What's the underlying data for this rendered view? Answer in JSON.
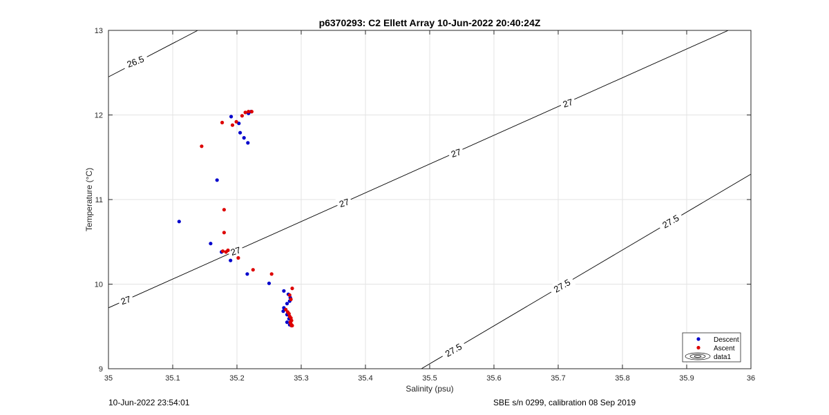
{
  "chart_data": {
    "type": "scatter",
    "title": "p6370293: C2 Ellett Array 10-Jun-2022 20:40:24Z",
    "xlabel": "Salinity (psu)",
    "ylabel": "Temperature (°C)",
    "xlim": [
      35,
      36
    ],
    "ylim": [
      9,
      13
    ],
    "xticks": [
      "35",
      "35.1",
      "35.2",
      "35.3",
      "35.4",
      "35.5",
      "35.6",
      "35.7",
      "35.8",
      "35.9",
      "36"
    ],
    "yticks": [
      "9",
      "10",
      "11",
      "12",
      "13"
    ],
    "grid": true,
    "legend_position": "bottom-right",
    "series": [
      {
        "name": "Descent",
        "color": "#0000cc",
        "points": [
          [
            35.191,
            11.98
          ],
          [
            35.203,
            11.9
          ],
          [
            35.205,
            11.79
          ],
          [
            35.211,
            11.73
          ],
          [
            35.217,
            11.67
          ],
          [
            35.218,
            12.02
          ],
          [
            35.222,
            12.04
          ],
          [
            35.169,
            11.23
          ],
          [
            35.11,
            10.74
          ],
          [
            35.159,
            10.48
          ],
          [
            35.176,
            10.38
          ],
          [
            35.19,
            10.28
          ],
          [
            35.216,
            10.12
          ],
          [
            35.25,
            10.01
          ],
          [
            35.273,
            9.92
          ],
          [
            35.28,
            9.88
          ],
          [
            35.283,
            9.84
          ],
          [
            35.282,
            9.8
          ],
          [
            35.278,
            9.77
          ],
          [
            35.273,
            9.72
          ],
          [
            35.272,
            9.68
          ],
          [
            35.278,
            9.64
          ],
          [
            35.281,
            9.59
          ],
          [
            35.278,
            9.55
          ],
          [
            35.282,
            9.52
          ],
          [
            35.285,
            9.51
          ]
        ]
      },
      {
        "name": "Ascent",
        "color": "#dd0000",
        "points": [
          [
            35.145,
            11.63
          ],
          [
            35.177,
            11.91
          ],
          [
            35.193,
            11.88
          ],
          [
            35.199,
            11.92
          ],
          [
            35.208,
            11.99
          ],
          [
            35.213,
            12.03
          ],
          [
            35.218,
            12.04
          ],
          [
            35.223,
            12.04
          ],
          [
            35.18,
            10.88
          ],
          [
            35.18,
            10.61
          ],
          [
            35.183,
            10.38
          ],
          [
            35.186,
            10.4
          ],
          [
            35.178,
            10.39
          ],
          [
            35.202,
            10.31
          ],
          [
            35.225,
            10.17
          ],
          [
            35.254,
            10.12
          ],
          [
            35.286,
            9.95
          ],
          [
            35.282,
            9.87
          ],
          [
            35.284,
            9.82
          ],
          [
            35.276,
            9.7
          ],
          [
            35.279,
            9.67
          ],
          [
            35.281,
            9.65
          ],
          [
            35.282,
            9.62
          ],
          [
            35.284,
            9.6
          ],
          [
            35.285,
            9.57
          ],
          [
            35.283,
            9.55
          ],
          [
            35.284,
            9.53
          ],
          [
            35.285,
            9.51
          ],
          [
            35.286,
            9.51
          ]
        ]
      }
    ],
    "density_contours": [
      {
        "label": "26.5",
        "points": [
          [
            35.0,
            12.45
          ],
          [
            35.139,
            13.0
          ]
        ]
      },
      {
        "label": "27",
        "points": [
          [
            35.0,
            9.72
          ],
          [
            36.0,
            13.12
          ]
        ]
      },
      {
        "label": "27.5",
        "points": [
          [
            35.487,
            9.0
          ],
          [
            36.0,
            11.3
          ]
        ]
      }
    ],
    "contour_labels": [
      {
        "text": "26.5",
        "x": 35.042,
        "y": 12.63,
        "angle": -21
      },
      {
        "text": "27",
        "x": 35.027,
        "y": 9.81,
        "angle": -18
      },
      {
        "text": "27",
        "x": 35.198,
        "y": 10.39,
        "angle": -18
      },
      {
        "text": "27",
        "x": 35.367,
        "y": 10.96,
        "angle": -18
      },
      {
        "text": "27",
        "x": 35.541,
        "y": 11.55,
        "angle": -18
      },
      {
        "text": "27",
        "x": 35.715,
        "y": 12.14,
        "angle": -18
      },
      {
        "text": "27.5",
        "x": 35.537,
        "y": 9.22,
        "angle": -30
      },
      {
        "text": "27.5",
        "x": 35.706,
        "y": 9.98,
        "angle": -30
      },
      {
        "text": "27.5",
        "x": 35.875,
        "y": 10.74,
        "angle": -30
      }
    ],
    "legend": [
      "Descent",
      "Ascent",
      "data1"
    ]
  },
  "footer": {
    "left": "10-Jun-2022 23:54:01",
    "right": "SBE s/n 0299, calibration 08 Sep 2019"
  }
}
